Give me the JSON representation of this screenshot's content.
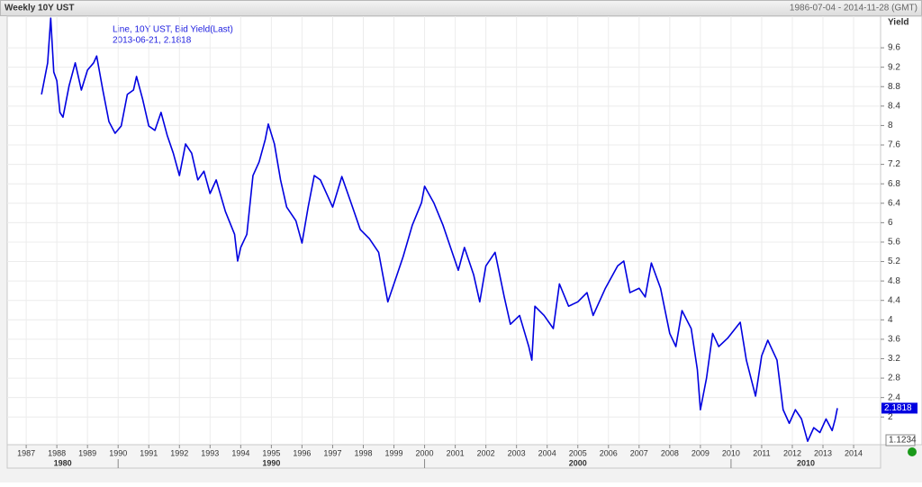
{
  "chart_data": {
    "type": "line",
    "title": "Weekly 10Y UST",
    "date_range": "1986-07-04 - 2014-11-28 (GMT)",
    "y_label": "Yield",
    "legend_lines": [
      "Line, 10Y UST, Bid Yield(Last)",
      "2013-06-21, 2.1818"
    ],
    "cursor_label": "1.1234",
    "x": [
      1987.5,
      1987.7,
      1987.8,
      1987.9,
      1988.0,
      1988.1,
      1988.2,
      1988.4,
      1988.6,
      1988.8,
      1989.0,
      1989.2,
      1989.3,
      1989.5,
      1989.7,
      1989.9,
      1990.1,
      1990.3,
      1990.5,
      1990.6,
      1990.8,
      1991.0,
      1991.2,
      1991.4,
      1991.6,
      1991.8,
      1992.0,
      1992.2,
      1992.4,
      1992.6,
      1992.8,
      1993.0,
      1993.2,
      1993.5,
      1993.8,
      1993.9,
      1994.0,
      1994.2,
      1994.4,
      1994.6,
      1994.8,
      1994.9,
      1995.1,
      1995.3,
      1995.5,
      1995.8,
      1996.0,
      1996.2,
      1996.4,
      1996.6,
      1996.8,
      1997.0,
      1997.3,
      1997.6,
      1997.9,
      1998.2,
      1998.5,
      1998.8,
      1999.0,
      1999.3,
      1999.6,
      1999.9,
      2000.0,
      2000.3,
      2000.6,
      2000.9,
      2001.1,
      2001.3,
      2001.6,
      2001.8,
      2002.0,
      2002.3,
      2002.6,
      2002.8,
      2003.1,
      2003.4,
      2003.5,
      2003.6,
      2003.9,
      2004.2,
      2004.4,
      2004.7,
      2005.0,
      2005.3,
      2005.5,
      2005.9,
      2006.3,
      2006.5,
      2006.7,
      2007.0,
      2007.2,
      2007.4,
      2007.7,
      2008.0,
      2008.2,
      2008.4,
      2008.7,
      2008.9,
      2009.0,
      2009.2,
      2009.4,
      2009.6,
      2009.9,
      2010.3,
      2010.5,
      2010.8,
      2011.0,
      2011.2,
      2011.5,
      2011.7,
      2011.9,
      2012.1,
      2012.3,
      2012.5,
      2012.7,
      2012.9,
      2013.1,
      2013.3,
      2013.4,
      2013.47
    ],
    "series": [
      {
        "name": "10Y UST",
        "color": "#0000e0",
        "values": [
          8.64,
          9.29,
          10.21,
          9.1,
          8.92,
          8.27,
          8.17,
          8.82,
          9.29,
          8.73,
          9.14,
          9.29,
          9.43,
          8.73,
          8.08,
          7.84,
          7.99,
          8.64,
          8.73,
          9.01,
          8.54,
          7.99,
          7.9,
          8.27,
          7.8,
          7.43,
          6.97,
          7.62,
          7.43,
          6.88,
          7.06,
          6.6,
          6.88,
          6.23,
          5.76,
          5.21,
          5.49,
          5.76,
          6.97,
          7.25,
          7.71,
          8.03,
          7.62,
          6.88,
          6.32,
          6.04,
          5.58,
          6.32,
          6.97,
          6.88,
          6.6,
          6.32,
          6.95,
          6.41,
          5.86,
          5.67,
          5.39,
          4.37,
          4.74,
          5.3,
          5.95,
          6.41,
          6.75,
          6.41,
          5.95,
          5.39,
          5.02,
          5.49,
          4.93,
          4.37,
          5.11,
          5.39,
          4.47,
          3.91,
          4.09,
          3.45,
          3.17,
          4.28,
          4.09,
          3.82,
          4.74,
          4.28,
          4.37,
          4.56,
          4.09,
          4.65,
          5.11,
          5.21,
          4.56,
          4.65,
          4.47,
          5.17,
          4.65,
          3.72,
          3.45,
          4.19,
          3.82,
          2.98,
          2.15,
          2.8,
          3.72,
          3.45,
          3.63,
          3.95,
          3.17,
          2.43,
          3.26,
          3.58,
          3.17,
          2.15,
          1.87,
          2.15,
          1.96,
          1.5,
          1.78,
          1.68,
          1.96,
          1.72,
          1.96,
          2.1818
        ]
      }
    ],
    "xlim": [
      1986.38,
      2014.88
    ],
    "xticks": [
      1987,
      1988,
      1989,
      1990,
      1991,
      1992,
      1993,
      1994,
      1995,
      1996,
      1997,
      1998,
      1999,
      2000,
      2001,
      2002,
      2003,
      2004,
      2005,
      2006,
      2007,
      2008,
      2009,
      2010,
      2011,
      2012,
      2013,
      2014
    ],
    "decade_ticks": [
      1980,
      1990,
      2000,
      2010
    ],
    "ylim": [
      1.43,
      10.25
    ],
    "yticks": [
      2,
      2.4,
      2.8,
      3.2,
      3.6,
      4,
      4.4,
      4.8,
      5.2,
      5.6,
      6,
      6.4,
      6.8,
      7.2,
      7.6,
      8,
      8.4,
      8.8,
      9.2,
      9.6
    ],
    "grid": true
  }
}
